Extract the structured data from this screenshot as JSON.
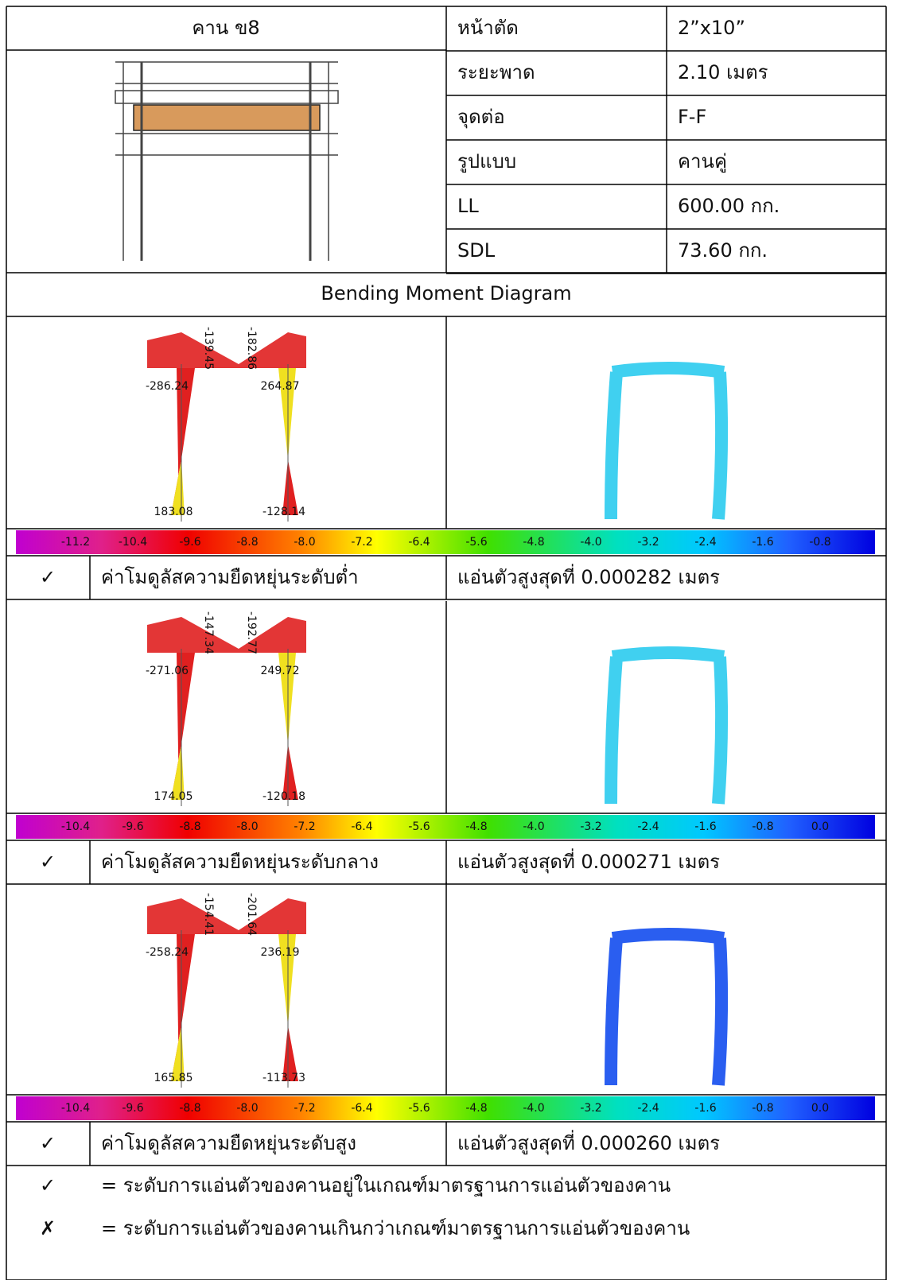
{
  "header": {
    "title": "คาน ข8"
  },
  "properties": [
    {
      "label": "หน้าตัด",
      "value": "2”x10”"
    },
    {
      "label": "ระยะพาด",
      "value": "2.10 เมตร"
    },
    {
      "label": "จุดต่อ",
      "value": "F-F"
    },
    {
      "label": "รูปแบบ",
      "value": "คานคู่"
    },
    {
      "label": "LL",
      "value": "600.00 กก."
    },
    {
      "label": "SDL",
      "value": "73.60 กก."
    }
  ],
  "section_title": "Bending Moment Diagram",
  "cases": [
    {
      "moment_labels": [
        "-286.24",
        "264.87",
        "183.08",
        "-128.14",
        "-139.45",
        "-182.86"
      ],
      "scale_labels": [
        "-11.2",
        "-10.4",
        "-9.6",
        "-8.8",
        "-8.0",
        "-7.2",
        "-6.4",
        "-5.6",
        "-4.8",
        "-4.0",
        "-3.2",
        "-2.4",
        "-1.6",
        "-0.8"
      ],
      "check": "✓",
      "description": "ค่าโมดูลัสความยืดหยุ่นระดับต่ำ",
      "deflection": "แอ่นตัวสูงสุดที่ 0.000282 เมตร"
    },
    {
      "moment_labels": [
        "-271.06",
        "249.72",
        "174.05",
        "-120.18",
        "-147.34",
        "-192.77"
      ],
      "scale_labels": [
        "-10.4",
        "-9.6",
        "-8.8",
        "-8.0",
        "-7.2",
        "-6.4",
        "-5.6",
        "-4.8",
        "-4.0",
        "-3.2",
        "-2.4",
        "-1.6",
        "-0.8",
        "0.0"
      ],
      "check": "✓",
      "description": "ค่าโมดูลัสความยืดหยุ่นระดับกลาง",
      "deflection": "แอ่นตัวสูงสุดที่ 0.000271 เมตร"
    },
    {
      "moment_labels": [
        "-258.24",
        "236.19",
        "165.85",
        "-113.73",
        "-154.41",
        "-201.64"
      ],
      "scale_labels": [
        "-10.4",
        "-9.6",
        "-8.8",
        "-8.0",
        "-7.2",
        "-6.4",
        "-5.6",
        "-4.8",
        "-4.0",
        "-3.2",
        "-2.4",
        "-1.6",
        "-0.8",
        "0.0"
      ],
      "check": "✓",
      "description": "ค่าโมดูลัสความยืดหยุ่นระดับสูง",
      "deflection": "แอ่นตัวสูงสุดที่ 0.000260 เมตร"
    }
  ],
  "legend": [
    {
      "symbol": "✓",
      "text": "= ระดับการแอ่นตัวของคานอยู่ในเกณฑ์มาตรฐานการแอ่นตัวของคาน"
    },
    {
      "symbol": "✗",
      "text": "= ระดับการแอ่นตัวของคานเกินกว่าเกณฑ์มาตรฐานการแอ่นตัวของคาน"
    }
  ]
}
